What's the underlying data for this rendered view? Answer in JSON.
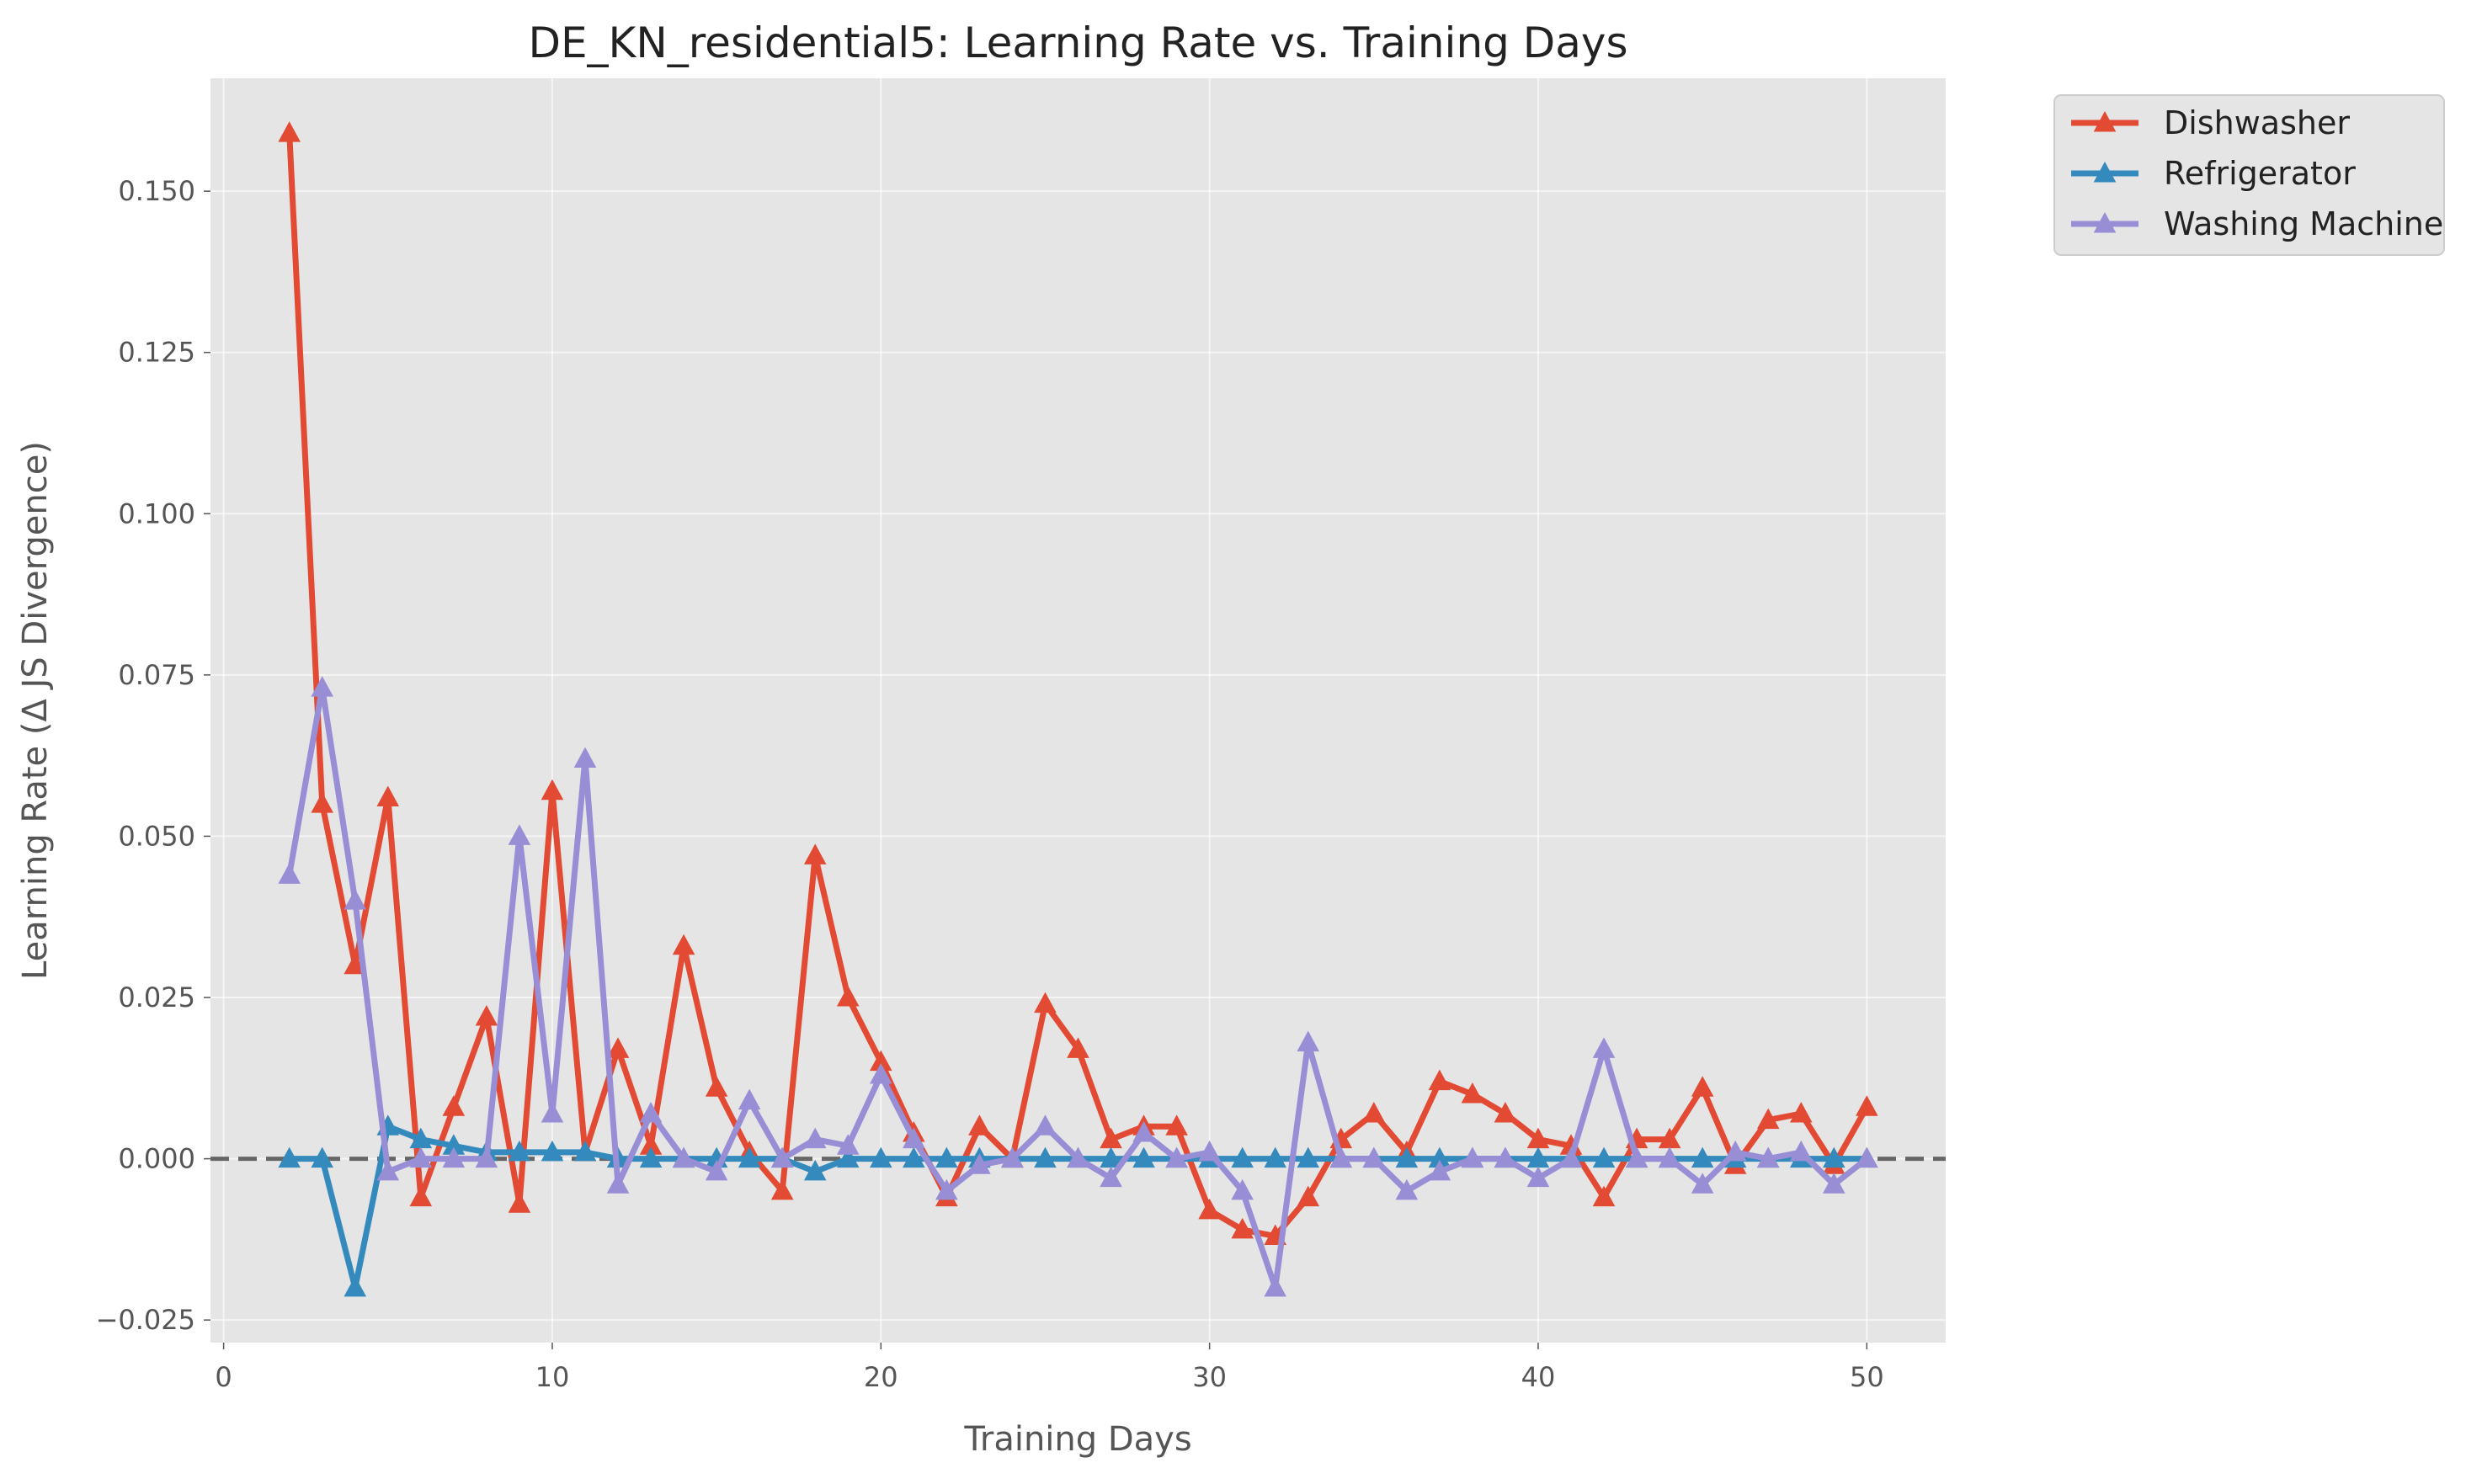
{
  "chart_data": {
    "type": "line",
    "title": "DE_KN_residential5: Learning Rate vs. Training Days",
    "xlabel": "Training Days",
    "ylabel": "Learning Rate (Δ JS Divergence)",
    "xlim": [
      -0.4,
      52.4
    ],
    "ylim": [
      -0.0285,
      0.1675
    ],
    "xticks": [
      0,
      10,
      20,
      30,
      40,
      50
    ],
    "yticks": [
      -0.025,
      0.0,
      0.025,
      0.05,
      0.075,
      0.1,
      0.125,
      0.15
    ],
    "ytick_labels": [
      "−0.025",
      "0.000",
      "0.025",
      "0.050",
      "0.075",
      "0.100",
      "0.125",
      "0.150"
    ],
    "grid": true,
    "legend_position": "outside-top-right",
    "reference_line": {
      "y": 0,
      "style": "dashed",
      "color": "#666666"
    },
    "x": [
      2,
      3,
      4,
      5,
      6,
      7,
      8,
      9,
      10,
      11,
      12,
      13,
      14,
      15,
      16,
      17,
      18,
      19,
      20,
      21,
      22,
      23,
      24,
      25,
      26,
      27,
      28,
      29,
      30,
      31,
      32,
      33,
      34,
      35,
      36,
      37,
      38,
      39,
      40,
      41,
      42,
      43,
      44,
      45,
      46,
      47,
      48,
      49,
      50
    ],
    "series": [
      {
        "name": "Dishwasher",
        "color": "#E24A33",
        "marker": "triangle-up",
        "values": [
          0.159,
          0.055,
          0.03,
          0.056,
          -0.006,
          0.008,
          0.022,
          -0.007,
          0.057,
          0.001,
          0.017,
          0.002,
          0.033,
          0.011,
          0.001,
          -0.005,
          0.047,
          0.025,
          0.015,
          0.004,
          -0.006,
          0.005,
          0.0,
          0.024,
          0.017,
          0.003,
          0.005,
          0.005,
          -0.008,
          -0.011,
          -0.012,
          -0.006,
          0.003,
          0.007,
          0.001,
          0.012,
          0.01,
          0.007,
          0.003,
          0.002,
          -0.006,
          0.003,
          0.003,
          0.011,
          -0.001,
          0.006,
          0.007,
          -0.001,
          0.008
        ]
      },
      {
        "name": "Refrigerator",
        "color": "#348ABD",
        "marker": "triangle-up",
        "values": [
          0.0,
          0.0,
          -0.02,
          0.005,
          0.003,
          0.002,
          0.001,
          0.001,
          0.001,
          0.001,
          0.0,
          0.0,
          0.0,
          0.0,
          0.0,
          0.0,
          -0.002,
          0.0,
          0.0,
          0.0,
          0.0,
          0.0,
          0.0,
          0.0,
          0.0,
          0.0,
          0.0,
          0.0,
          0.0,
          0.0,
          0.0,
          0.0,
          0.0,
          0.0,
          0.0,
          0.0,
          0.0,
          0.0,
          0.0,
          0.0,
          0.0,
          0.0,
          0.0,
          0.0,
          0.0,
          0.0,
          0.0,
          0.0,
          0.0
        ]
      },
      {
        "name": "Washing Machine",
        "color": "#988ED5",
        "marker": "triangle-up",
        "values": [
          0.044,
          0.073,
          0.04,
          -0.002,
          0.0,
          0.0,
          0.0,
          0.05,
          0.007,
          0.062,
          -0.004,
          0.007,
          0.0,
          -0.002,
          0.009,
          0.0,
          0.003,
          0.002,
          0.013,
          0.003,
          -0.005,
          -0.001,
          0.0,
          0.005,
          0.0,
          -0.003,
          0.004,
          0.0,
          0.001,
          -0.005,
          -0.02,
          0.018,
          0.0,
          0.0,
          -0.005,
          -0.002,
          0.0,
          0.0,
          -0.003,
          0.0,
          0.017,
          0.0,
          0.0,
          -0.004,
          0.001,
          0.0,
          0.001,
          -0.004,
          0.0
        ]
      }
    ]
  }
}
